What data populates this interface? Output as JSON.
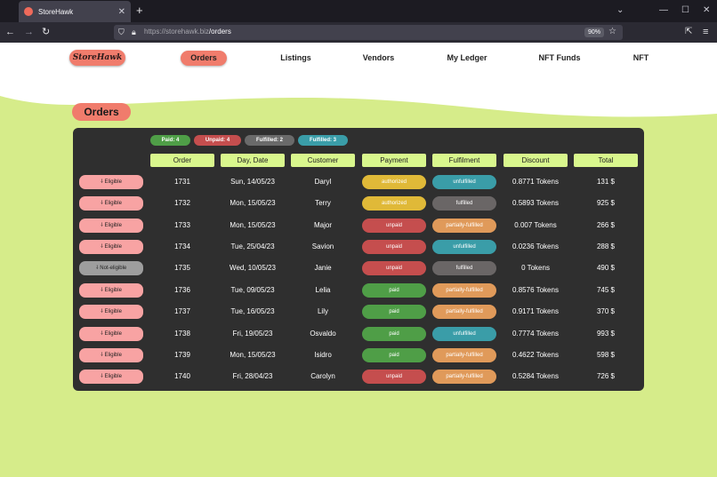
{
  "browser": {
    "tab_title": "StoreHawk",
    "url_host": "https://storehawk.biz",
    "url_path": "/orders",
    "zoom": "90%"
  },
  "site": {
    "logo": "StoreHawk",
    "nav": [
      "Orders",
      "Listings",
      "Vendors",
      "My Ledger",
      "NFT Funds",
      "NFT"
    ]
  },
  "page_title": "Orders",
  "summary": [
    {
      "label": "Paid: 4",
      "color": "#4f9e47"
    },
    {
      "label": "Unpaid: 4",
      "color": "#c54e4e"
    },
    {
      "label": "Fulfilled: 2",
      "color": "#6a6a6a"
    },
    {
      "label": "Fulfilled: 3",
      "color": "#3a9da8"
    }
  ],
  "columns": [
    "Order",
    "Day, Date",
    "Customer",
    "Payment",
    "Fulfilment",
    "Discount",
    "Total"
  ],
  "rows": [
    {
      "elig": "⸸ Eligible",
      "order": "1731",
      "date": "Sun, 14/05/23",
      "customer": "Daryl",
      "payment": "authorized",
      "fulfil": "unfulfilled",
      "discount": "0.8771 Tokens",
      "total": "131 $"
    },
    {
      "elig": "⸸ Eligible",
      "order": "1732",
      "date": "Mon, 15/05/23",
      "customer": "Terry",
      "payment": "authorized",
      "fulfil": "fulfilled",
      "discount": "0.5893 Tokens",
      "total": "925 $"
    },
    {
      "elig": "⸸ Eligible",
      "order": "1733",
      "date": "Mon, 15/05/23",
      "customer": "Major",
      "payment": "unpaid",
      "fulfil": "partially-fulfilled",
      "discount": "0.007 Tokens",
      "total": "266 $"
    },
    {
      "elig": "⸸ Eligible",
      "order": "1734",
      "date": "Tue, 25/04/23",
      "customer": "Savion",
      "payment": "unpaid",
      "fulfil": "unfulfilled",
      "discount": "0.0236 Tokens",
      "total": "288 $"
    },
    {
      "elig": "⸸ Not-eligible",
      "order": "1735",
      "date": "Wed, 10/05/23",
      "customer": "Janie",
      "payment": "unpaid",
      "fulfil": "fulfilled",
      "discount": "0 Tokens",
      "total": "490 $"
    },
    {
      "elig": "⸸ Eligible",
      "order": "1736",
      "date": "Tue, 09/05/23",
      "customer": "Lelia",
      "payment": "paid",
      "fulfil": "partially-fulfilled",
      "discount": "0.8576 Tokens",
      "total": "745 $"
    },
    {
      "elig": "⸸ Eligible",
      "order": "1737",
      "date": "Tue, 16/05/23",
      "customer": "Lily",
      "payment": "paid",
      "fulfil": "partially-fulfilled",
      "discount": "0.9171 Tokens",
      "total": "370 $"
    },
    {
      "elig": "⸸ Eligible",
      "order": "1738",
      "date": "Fri, 19/05/23",
      "customer": "Osvaldo",
      "payment": "paid",
      "fulfil": "unfulfilled",
      "discount": "0.7774 Tokens",
      "total": "993 $"
    },
    {
      "elig": "⸸ Eligible",
      "order": "1739",
      "date": "Mon, 15/05/23",
      "customer": "Isidro",
      "payment": "paid",
      "fulfil": "partially-fulfilled",
      "discount": "0.4622 Tokens",
      "total": "598 $"
    },
    {
      "elig": "⸸ Eligible",
      "order": "1740",
      "date": "Fri, 28/04/23",
      "customer": "Carolyn",
      "payment": "unpaid",
      "fulfil": "partially-fulfilled",
      "discount": "0.5284 Tokens",
      "total": "726 $"
    }
  ],
  "colors": {
    "accent": "#f07c6c",
    "page_bg": "#d6ec8a",
    "panel_bg": "#2f2f2f",
    "header_bg": "#d9f78d",
    "payment": {
      "authorized": "#e0b938",
      "unpaid": "#c54e4e",
      "paid": "#4f9e47"
    },
    "fulfil": {
      "unfulfilled": "#3a9da8",
      "fulfilled": "#6a6666",
      "partially-fulfilled": "#e09a5a"
    }
  },
  "icons": [
    "back-arrow-icon",
    "forward-arrow-icon",
    "reload-icon",
    "shield-icon",
    "lock-icon",
    "star-icon",
    "extensions-icon",
    "menu-icon"
  ]
}
